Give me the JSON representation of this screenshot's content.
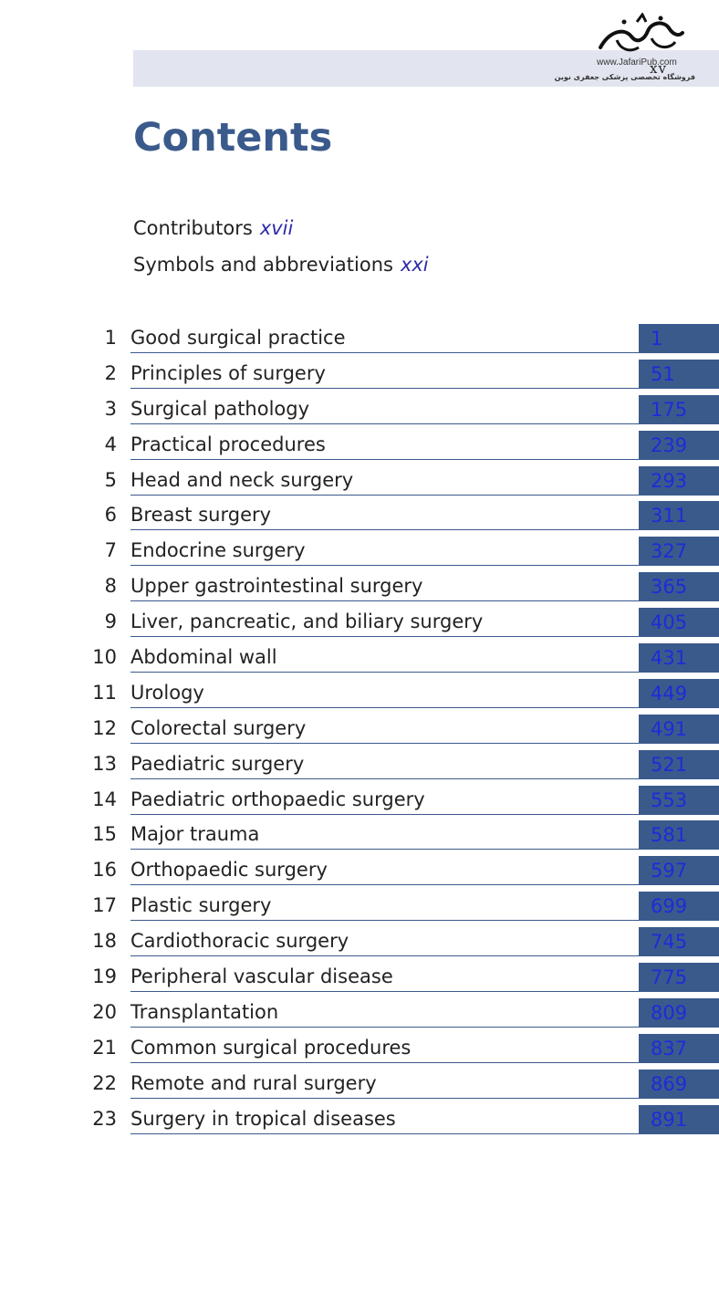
{
  "header": {
    "page_number": "xv",
    "logo": {
      "url": "www.JafariPub.com",
      "tagline": "فروشگاه تخصصی پزشکی جعفری نوین"
    }
  },
  "title": "Contents",
  "front_matter": [
    {
      "label": "Contributors",
      "page": "xvii"
    },
    {
      "label": "Symbols and abbreviations",
      "page": "xxi"
    }
  ],
  "chapters": [
    {
      "num": "1",
      "title": "Good surgical practice",
      "page": "1"
    },
    {
      "num": "2",
      "title": "Principles of surgery",
      "page": "51"
    },
    {
      "num": "3",
      "title": "Surgical pathology",
      "page": "175"
    },
    {
      "num": "4",
      "title": "Practical procedures",
      "page": "239"
    },
    {
      "num": "5",
      "title": "Head and neck surgery",
      "page": "293"
    },
    {
      "num": "6",
      "title": "Breast surgery",
      "page": "311"
    },
    {
      "num": "7",
      "title": "Endocrine surgery",
      "page": "327"
    },
    {
      "num": "8",
      "title": "Upper gastrointestinal surgery",
      "page": "365"
    },
    {
      "num": "9",
      "title": "Liver, pancreatic, and biliary surgery",
      "page": "405"
    },
    {
      "num": "10",
      "title": "Abdominal wall",
      "page": "431"
    },
    {
      "num": "11",
      "title": "Urology",
      "page": "449"
    },
    {
      "num": "12",
      "title": "Colorectal surgery",
      "page": "491"
    },
    {
      "num": "13",
      "title": "Paediatric surgery",
      "page": "521"
    },
    {
      "num": "14",
      "title": "Paediatric orthopaedic surgery",
      "page": "553"
    },
    {
      "num": "15",
      "title": "Major trauma",
      "page": "581"
    },
    {
      "num": "16",
      "title": "Orthopaedic surgery",
      "page": "597"
    },
    {
      "num": "17",
      "title": "Plastic surgery",
      "page": "699"
    },
    {
      "num": "18",
      "title": "Cardiothoracic surgery",
      "page": "745"
    },
    {
      "num": "19",
      "title": "Peripheral vascular disease",
      "page": "775"
    },
    {
      "num": "20",
      "title": "Transplantation",
      "page": "809"
    },
    {
      "num": "21",
      "title": "Common surgical procedures",
      "page": "837"
    },
    {
      "num": "22",
      "title": "Remote and rural surgery",
      "page": "869"
    },
    {
      "num": "23",
      "title": "Surgery in tropical diseases",
      "page": "891"
    }
  ]
}
